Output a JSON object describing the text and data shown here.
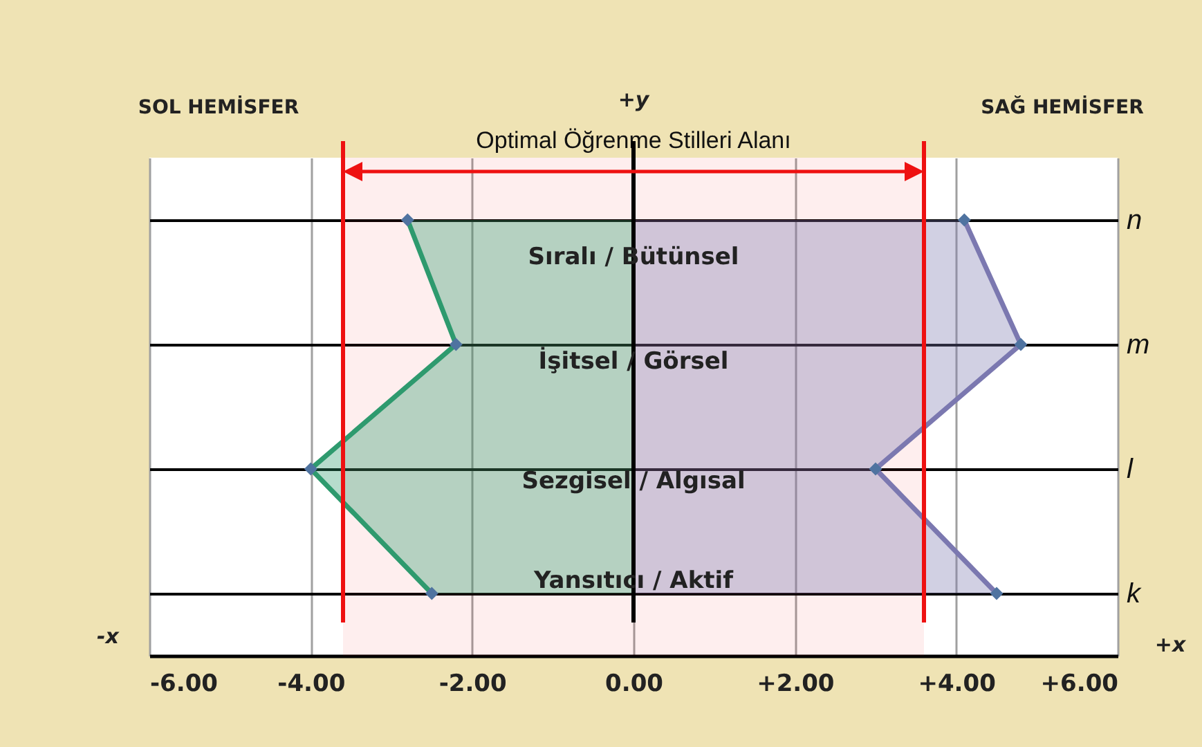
{
  "chart_data": {
    "type": "area",
    "orientation": "horizontal",
    "categories": [
      "n",
      "m",
      "l",
      "k"
    ],
    "series": [
      {
        "color": "#2e9a6e",
        "values": [
          -2.8,
          -2.2,
          -4.0,
          -2.5
        ]
      },
      {
        "color": "#7b78b0",
        "values": [
          4.1,
          4.8,
          3.0,
          4.5
        ]
      }
    ],
    "xlim": [
      -6,
      6
    ],
    "xticks": [
      {
        "value": -6,
        "label": "-6.00"
      },
      {
        "value": -4,
        "label": "-4.00"
      },
      {
        "value": -2,
        "label": "-2.00"
      },
      {
        "value": 0,
        "label": "0.00"
      },
      {
        "value": 2,
        "label": "+2.00"
      },
      {
        "value": 4,
        "label": "+4.00"
      },
      {
        "value": 6,
        "label": "+6.00"
      }
    ],
    "bands": [
      {
        "axis": "x",
        "from": -3.6,
        "to": 3.6,
        "label": "Optimal Öğrenme Stilleri Alanı",
        "color": "#ee1111"
      }
    ],
    "ref_lines": [
      {
        "axis": "x",
        "value": -3.6,
        "color": "#ee1111"
      },
      {
        "axis": "x",
        "value": 3.6,
        "color": "#ee1111"
      },
      {
        "axis": "x",
        "value": 0,
        "color": "#000000"
      }
    ],
    "annotations": [
      "SOL HEMİSFER",
      "SAĞ HEMİSFER",
      "-x",
      "+x",
      "+y",
      "Sıralı / Bütünsel",
      "İşitsel / Görsel",
      "Sezgisel / Algısal",
      "Yansıtıcı / Aktif"
    ],
    "marker": "diamond",
    "grid": true,
    "legend": false
  }
}
